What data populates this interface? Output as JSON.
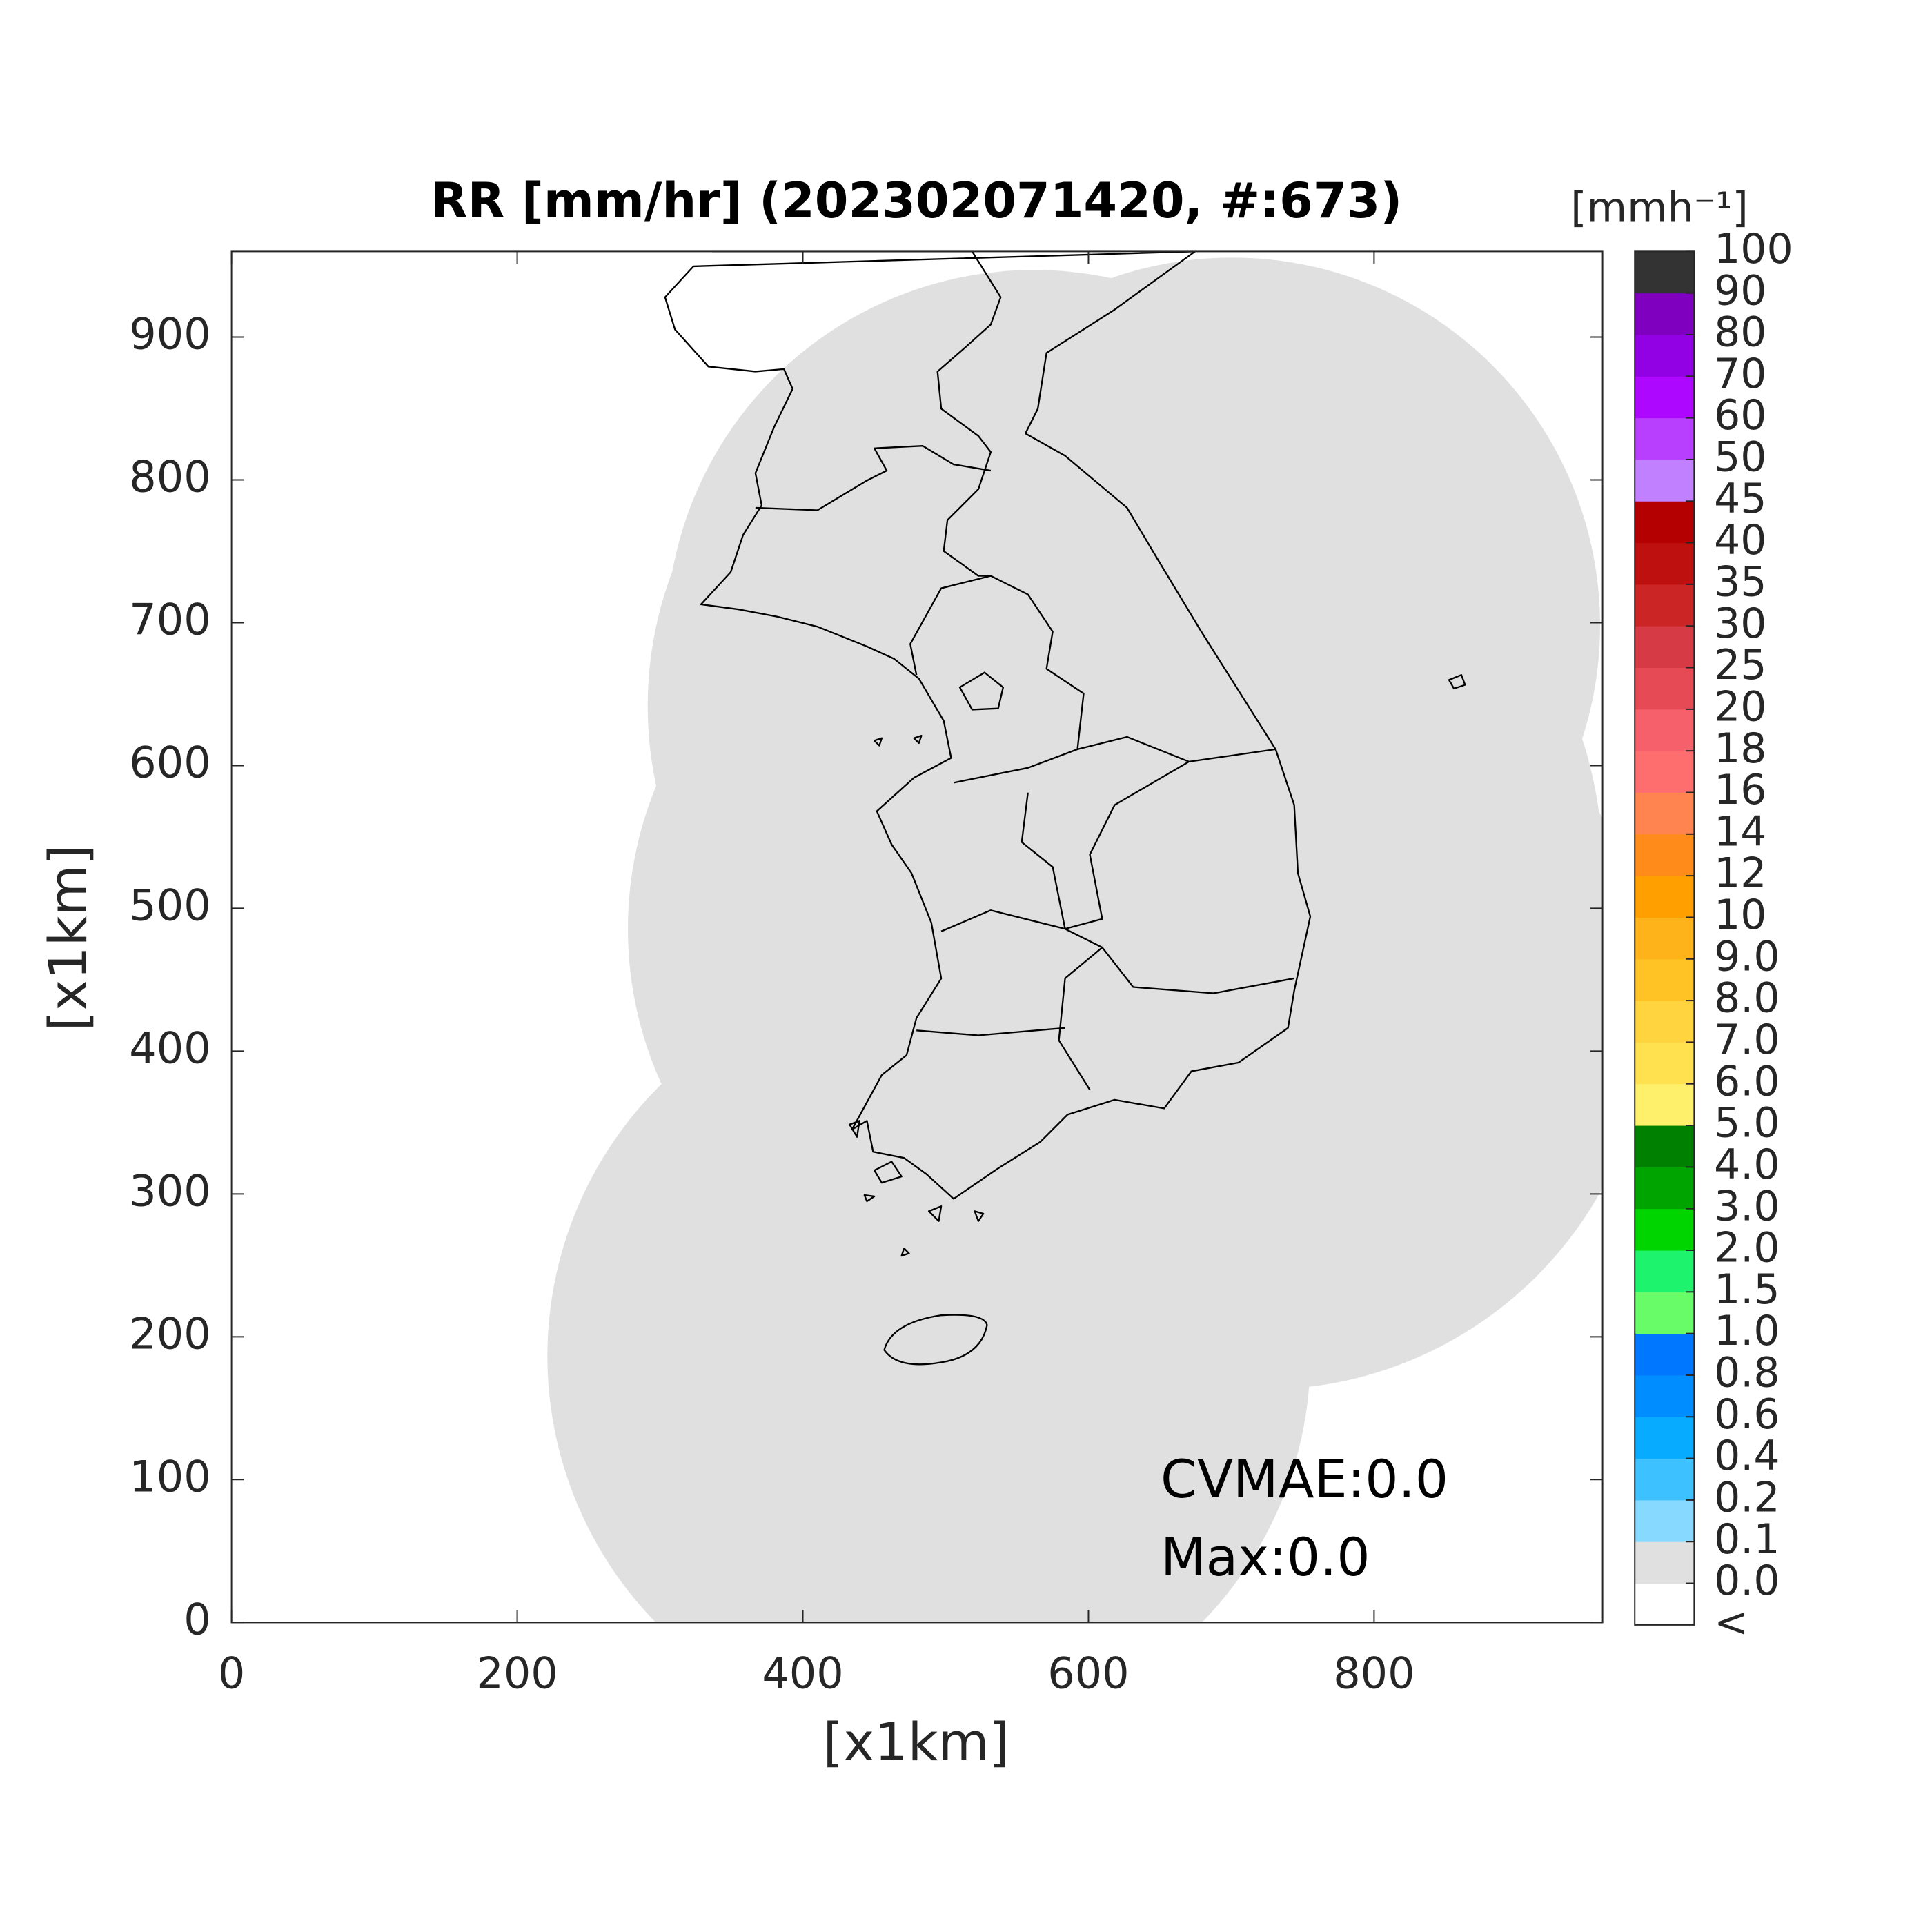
{
  "chart_data": {
    "type": "map",
    "title": "RR [mm/hr] (202302071420, #:673)",
    "xlabel": "[x1km]",
    "ylabel": "[x1km]",
    "xlim": [
      0,
      960
    ],
    "ylim": [
      0,
      960
    ],
    "xticks": [
      0,
      200,
      400,
      600,
      800
    ],
    "yticks": [
      0,
      100,
      200,
      300,
      400,
      500,
      600,
      700,
      800,
      900
    ],
    "annotations": [
      "CVMAE:0.0",
      "Max:0.0"
    ],
    "colorbar": {
      "label": "[mmh⁻¹]",
      "ticks": [
        "<",
        {
          "value": 0,
          "label": "0.0"
        },
        0.1,
        0.2,
        0.4,
        0.6,
        0.8,
        {
          "value": 1,
          "label": "1.0"
        },
        1.5,
        {
          "value": 2,
          "label": "2.0"
        },
        {
          "value": 3,
          "label": "3.0"
        },
        {
          "value": 4,
          "label": "4.0"
        },
        {
          "value": 5,
          "label": "5.0"
        },
        {
          "value": 6,
          "label": "6.0"
        },
        {
          "value": 7,
          "label": "7.0"
        },
        {
          "value": 8,
          "label": "8.0"
        },
        {
          "value": 9,
          "label": "9.0"
        },
        10,
        12,
        14,
        16,
        18,
        20,
        25,
        30,
        35,
        40,
        45,
        50,
        60,
        70,
        80,
        90,
        100
      ],
      "colors": [
        "#ffffff",
        "#e0e0e0",
        "#87d9ff",
        "#3ec1ff",
        "#07abff",
        "#008dff",
        "#0077ff",
        "#69fc69",
        "#1ef36e",
        "#00d500",
        "#00a400",
        "#008000",
        "#fff06c",
        "#ffe150",
        "#ffd43e",
        "#ffc326",
        "#ffb31a",
        "#ffa000",
        "#ff8c1a",
        "#ff8450",
        "#ff6e6e",
        "#f5606a",
        "#e64b55",
        "#d63a44",
        "#cc2525",
        "#bf1010",
        "#b40000",
        "#c080ff",
        "#b93fff",
        "#ad07ff",
        "#9200e4",
        "#7f00bf",
        "#333333"
      ]
    }
  }
}
